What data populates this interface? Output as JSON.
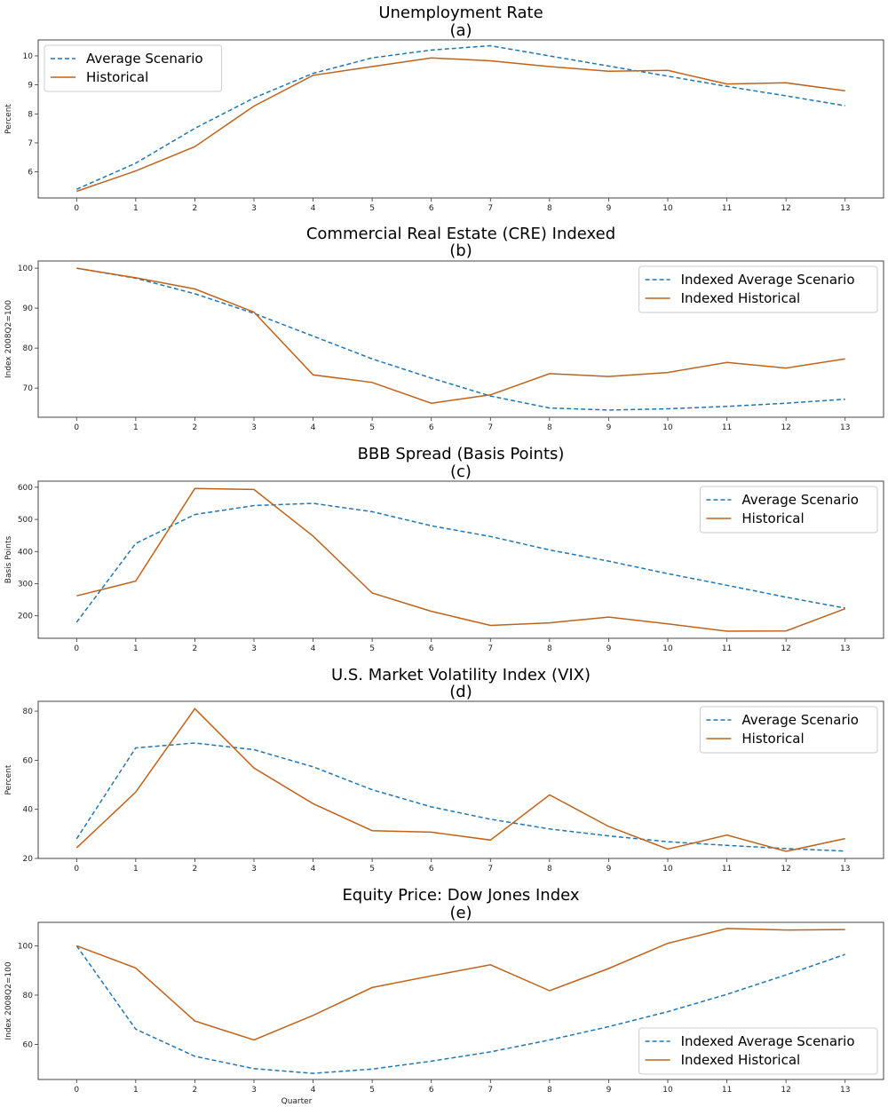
{
  "chart_data": [
    {
      "type": "line",
      "title": "Unemployment Rate",
      "subtitle": "(a)",
      "xlabel": "",
      "ylabel": "Percent",
      "x": [
        0,
        1,
        2,
        3,
        4,
        5,
        6,
        7,
        8,
        9,
        10,
        11,
        12,
        13
      ],
      "xlim": [
        -0.65,
        13.65
      ],
      "ylim": [
        5.1,
        10.55
      ],
      "yticks": [
        6,
        7,
        8,
        9,
        10
      ],
      "legend_position": "top-left",
      "series": [
        {
          "name": "Average Scenario",
          "style": "dashed",
          "color": "#1f77b4",
          "values": [
            5.4,
            6.3,
            7.5,
            8.55,
            9.4,
            9.93,
            10.2,
            10.35,
            10.0,
            9.65,
            9.3,
            8.95,
            8.62,
            8.28
          ]
        },
        {
          "name": "Historical",
          "style": "solid",
          "color": "#c0621a",
          "values": [
            5.33,
            6.03,
            6.87,
            8.27,
            9.33,
            9.63,
            9.93,
            9.83,
            9.63,
            9.47,
            9.5,
            9.03,
            9.07,
            8.8
          ]
        }
      ]
    },
    {
      "type": "line",
      "title": "Commercial Real Estate (CRE) Indexed",
      "subtitle": "(b)",
      "xlabel": "",
      "ylabel": "Index 2008Q2=100",
      "x": [
        0,
        1,
        2,
        3,
        4,
        5,
        6,
        7,
        8,
        9,
        10,
        11,
        12,
        13
      ],
      "xlim": [
        -0.65,
        13.65
      ],
      "ylim": [
        62.7,
        101.8
      ],
      "yticks": [
        70,
        80,
        90,
        100
      ],
      "legend_position": "top-right",
      "series": [
        {
          "name": "Indexed Average Scenario",
          "style": "dashed",
          "color": "#1f77b4",
          "values": [
            100,
            97.5,
            93.6,
            88.7,
            83.0,
            77.3,
            72.5,
            68.0,
            65.0,
            64.5,
            64.8,
            65.4,
            66.2,
            67.2
          ]
        },
        {
          "name": "Indexed Historical",
          "style": "solid",
          "color": "#c0621a",
          "values": [
            100,
            97.6,
            94.8,
            89.0,
            73.3,
            71.4,
            66.2,
            68.3,
            73.6,
            72.9,
            73.9,
            76.4,
            75.0,
            77.3
          ]
        }
      ]
    },
    {
      "type": "line",
      "title": "BBB Spread (Basis Points)",
      "subtitle": "(c)",
      "xlabel": "",
      "ylabel": "Basis Points",
      "x": [
        0,
        1,
        2,
        3,
        4,
        5,
        6,
        7,
        8,
        9,
        10,
        11,
        12,
        13
      ],
      "xlim": [
        -0.65,
        13.65
      ],
      "ylim": [
        130,
        619
      ],
      "yticks": [
        200,
        300,
        400,
        500,
        600
      ],
      "legend_position": "top-right",
      "series": [
        {
          "name": "Average Scenario",
          "style": "dashed",
          "color": "#1f77b4",
          "values": [
            180,
            425,
            515,
            543,
            550,
            524,
            480,
            447,
            405,
            370,
            331,
            295,
            258,
            224
          ]
        },
        {
          "name": "Historical",
          "style": "solid",
          "color": "#c0621a",
          "values": [
            262,
            308,
            596,
            593,
            448,
            271,
            214,
            170,
            178,
            196,
            175,
            152,
            153,
            222
          ]
        }
      ]
    },
    {
      "type": "line",
      "title": "U.S. Market Volatility Index (VIX)",
      "subtitle": "(d)",
      "xlabel": "",
      "ylabel": "Percent",
      "x": [
        0,
        1,
        2,
        3,
        4,
        5,
        6,
        7,
        8,
        9,
        10,
        11,
        12,
        13
      ],
      "xlim": [
        -0.65,
        13.65
      ],
      "ylim": [
        20,
        84
      ],
      "yticks": [
        20,
        40,
        60,
        80
      ],
      "legend_position": "top-right",
      "series": [
        {
          "name": "Average Scenario",
          "style": "dashed",
          "color": "#1f77b4",
          "values": [
            28,
            65,
            67,
            64.3,
            57.3,
            48,
            41,
            36,
            32,
            29.2,
            26.8,
            25.3,
            24,
            23
          ]
        },
        {
          "name": "Historical",
          "style": "solid",
          "color": "#c0621a",
          "values": [
            24.3,
            47,
            81,
            56.8,
            42.3,
            31.3,
            30.7,
            27.5,
            45.9,
            33,
            23.8,
            29.5,
            22.9,
            28.1
          ]
        }
      ]
    },
    {
      "type": "line",
      "title": "Equity Price: Dow Jones Index",
      "subtitle": "(e)",
      "xlabel": "Quarter",
      "ylabel": "Index 2008Q2=100",
      "x": [
        0,
        1,
        2,
        3,
        4,
        5,
        6,
        7,
        8,
        9,
        10,
        11,
        12,
        13
      ],
      "xlim": [
        -0.65,
        13.65
      ],
      "ylim": [
        45.8,
        109.5
      ],
      "yticks": [
        60,
        80,
        100
      ],
      "legend_position": "bottom-right",
      "series": [
        {
          "name": "Indexed Average Scenario",
          "style": "dashed",
          "color": "#1f77b4",
          "values": [
            100,
            66.2,
            55.2,
            50.2,
            48.3,
            50.0,
            53.2,
            57.0,
            61.8,
            67.2,
            73.3,
            80.3,
            88.2,
            96.5
          ]
        },
        {
          "name": "Indexed Historical",
          "style": "solid",
          "color": "#c0621a",
          "values": [
            100,
            91,
            69.5,
            61.8,
            71.8,
            83.1,
            87.8,
            92.3,
            81.8,
            90.8,
            101.0,
            107.0,
            106.4,
            106.6
          ]
        }
      ]
    }
  ]
}
